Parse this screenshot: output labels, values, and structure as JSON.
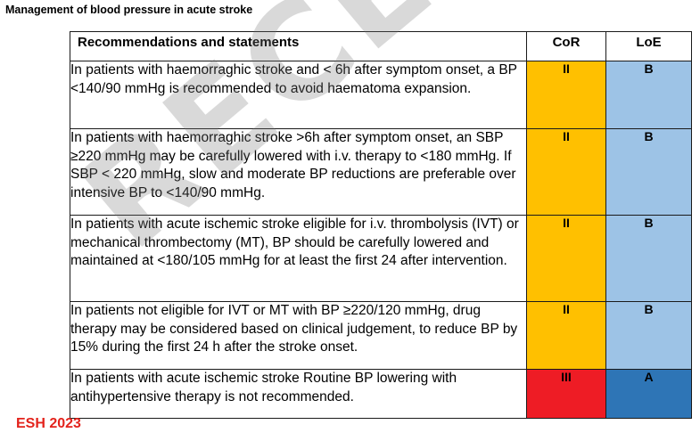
{
  "title": "Management of blood pressure in acute stroke",
  "table": {
    "headers": {
      "statement": "Recommendations and statements",
      "cor": "CoR",
      "loe": "LoE"
    },
    "rows": [
      {
        "statement": "In patients with haemorraghic stroke and < 6h after symptom onset, a BP <140/90 mmHg is recommended to avoid haematoma expansion.",
        "cor": "II",
        "loe": "B"
      },
      {
        "statement": "In patients with haemorraghic stroke >6h after symptom onset, an SBP ≥220 mmHg may be carefully lowered with i.v. therapy to <180 mmHg. If SBP < 220 mmHg, slow and moderate BP reductions are preferable over intensive BP to <140/90 mmHg.",
        "cor": "II",
        "loe": "B"
      },
      {
        "statement": "In patients with acute ischemic stroke eligible for i.v. thrombolysis (IVT) or mechanical thrombectomy (MT), BP should be carefully lowered and maintained at <180/105 mmHg for at least the first 24 after intervention.",
        "cor": "II",
        "loe": "B"
      },
      {
        "statement": "In patients not eligible for IVT or MT with BP ≥220/120 mmHg, drug therapy may be considered based on clinical judgement, to reduce BP by 15% during the first 24 h after the stroke onset.",
        "cor": "II",
        "loe": "B"
      },
      {
        "statement": "In patients with acute ischemic stroke Routine BP lowering with antihypertensive therapy is not recommended.",
        "cor": "III",
        "loe": "A"
      }
    ]
  },
  "colors": {
    "cor_ii": "#ffc000",
    "cor_iii": "#ee1c25",
    "loe_b": "#9dc3e6",
    "loe_a": "#2e75b6",
    "source_tag": "#e3231c"
  },
  "watermark": "RECENT",
  "source": "ESH 2023"
}
